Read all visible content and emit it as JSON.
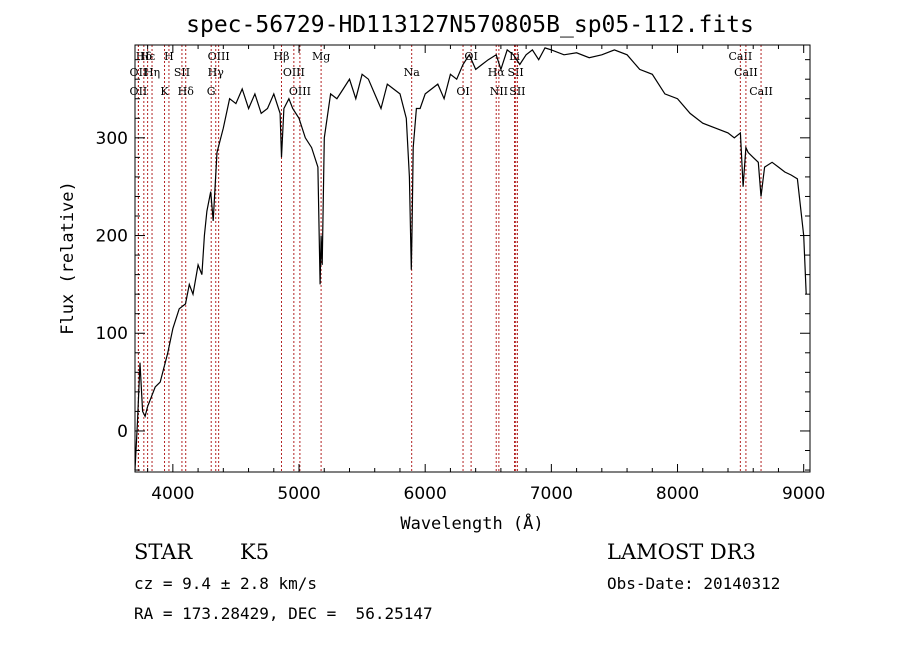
{
  "chart_data": {
    "type": "line",
    "title": "spec-56729-HD113127N570805B_sp05-112.fits",
    "xlabel": "Wavelength (Å)",
    "ylabel": "Flux (relative)",
    "xlim": [
      3700,
      9050
    ],
    "ylim": [
      -42,
      395
    ],
    "xticks": [
      4000,
      5000,
      6000,
      7000,
      8000,
      9000
    ],
    "yticks": [
      0,
      100,
      200,
      300
    ],
    "series": [
      {
        "x": [
          3700,
          3720,
          3740,
          3760,
          3780,
          3800,
          3830,
          3860,
          3900,
          3930,
          3960,
          4000,
          4050,
          4100,
          4130,
          4160,
          4200,
          4230,
          4250,
          4270,
          4300,
          4320,
          4350,
          4400,
          4450,
          4500,
          4550,
          4600,
          4650,
          4700,
          4750,
          4800,
          4850,
          4861,
          4880,
          4920,
          4950,
          5000,
          5050,
          5100,
          5150,
          5167,
          5175,
          5184,
          5200,
          5250,
          5300,
          5350,
          5400,
          5450,
          5500,
          5550,
          5600,
          5650,
          5700,
          5750,
          5800,
          5850,
          5875,
          5890,
          5896,
          5905,
          5930,
          5960,
          6000,
          6050,
          6100,
          6150,
          6200,
          6250,
          6300,
          6350,
          6400,
          6450,
          6500,
          6563,
          6600,
          6650,
          6700,
          6750,
          6800,
          6850,
          6900,
          6950,
          7000,
          7100,
          7200,
          7300,
          7400,
          7500,
          7600,
          7700,
          7800,
          7900,
          8000,
          8100,
          8200,
          8300,
          8400,
          8450,
          8498,
          8520,
          8542,
          8560,
          8600,
          8640,
          8662,
          8690,
          8750,
          8800,
          8850,
          8900,
          8950,
          9000,
          9020
        ],
        "values": [
          -40,
          10,
          70,
          20,
          15,
          25,
          35,
          45,
          50,
          65,
          80,
          105,
          125,
          130,
          150,
          140,
          170,
          160,
          200,
          225,
          245,
          215,
          285,
          310,
          340,
          335,
          350,
          330,
          345,
          325,
          330,
          345,
          325,
          280,
          330,
          340,
          330,
          320,
          300,
          290,
          270,
          150,
          200,
          170,
          300,
          345,
          340,
          350,
          360,
          340,
          365,
          360,
          345,
          330,
          355,
          350,
          345,
          320,
          260,
          165,
          210,
          290,
          330,
          330,
          345,
          350,
          355,
          340,
          365,
          360,
          375,
          385,
          370,
          375,
          380,
          385,
          370,
          390,
          385,
          375,
          385,
          390,
          380,
          392,
          390,
          385,
          387,
          382,
          385,
          390,
          385,
          370,
          365,
          345,
          340,
          325,
          315,
          310,
          305,
          300,
          305,
          250,
          290,
          285,
          280,
          275,
          240,
          270,
          275,
          270,
          265,
          262,
          258,
          200,
          140
        ]
      }
    ],
    "lines": [
      {
        "label": "Hδ",
        "wl": 3770
      },
      {
        "label": "OII",
        "wl": 3727
      },
      {
        "label": "OII",
        "wl": 3727
      },
      {
        "label": "Hε",
        "wl": 3800
      },
      {
        "label": "Hη",
        "wl": 3835
      },
      {
        "label": "K",
        "wl": 3934
      },
      {
        "label": "H",
        "wl": 3969
      },
      {
        "label": "SII",
        "wl": 4072
      },
      {
        "label": "Hδ",
        "wl": 4102
      },
      {
        "label": "OIII",
        "wl": 4363
      },
      {
        "label": "Hγ",
        "wl": 4340
      },
      {
        "label": "G",
        "wl": 4304
      },
      {
        "label": "Hβ",
        "wl": 4861
      },
      {
        "label": "OIII",
        "wl": 4959
      },
      {
        "label": "OIII",
        "wl": 5007
      },
      {
        "label": "Mg",
        "wl": 5175
      },
      {
        "label": "Na",
        "wl": 5893
      },
      {
        "label": "OI",
        "wl": 6300
      },
      {
        "label": "OI",
        "wl": 6364
      },
      {
        "label": "Hα",
        "wl": 6563
      },
      {
        "label": "NII",
        "wl": 6584
      },
      {
        "label": "Li",
        "wl": 6708
      },
      {
        "label": "SII",
        "wl": 6717
      },
      {
        "label": "SII",
        "wl": 6731
      },
      {
        "label": "CaII",
        "wl": 8498
      },
      {
        "label": "CaII",
        "wl": 8542
      },
      {
        "label": "CaII",
        "wl": 8662
      }
    ]
  },
  "info": {
    "class": "STAR",
    "subclass": "K5",
    "survey": "LAMOST DR3",
    "cz": "cz = 9.4 ± 2.8 km/s",
    "obs_date": "Obs-Date: 20140312",
    "coords": "RA = 173.28429, DEC =  56.25147"
  }
}
